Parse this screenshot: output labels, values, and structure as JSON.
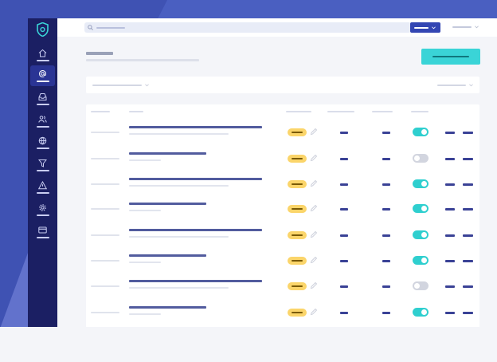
{
  "app": {
    "accent": "#3ad4d7",
    "sidebar_color": "#1b1f63",
    "primary_color": "#3346b3"
  },
  "sidebar": {
    "logo": "shield-at-logo",
    "items": [
      {
        "icon": "home-icon",
        "active": false
      },
      {
        "icon": "at-icon",
        "active": true
      },
      {
        "icon": "inbox-icon",
        "active": false
      },
      {
        "icon": "users-icon",
        "active": false
      },
      {
        "icon": "globe-icon",
        "active": false
      },
      {
        "icon": "filter-icon",
        "active": false
      },
      {
        "icon": "warning-icon",
        "active": false
      },
      {
        "icon": "gear-icon",
        "active": false
      },
      {
        "icon": "card-icon",
        "active": false
      }
    ]
  },
  "table": {
    "rows": [
      {
        "enabled": true,
        "wide": true
      },
      {
        "enabled": false,
        "wide": false
      },
      {
        "enabled": true,
        "wide": true
      },
      {
        "enabled": true,
        "wide": false
      },
      {
        "enabled": true,
        "wide": true
      },
      {
        "enabled": true,
        "wide": false
      },
      {
        "enabled": false,
        "wide": true
      },
      {
        "enabled": true,
        "wide": false
      }
    ]
  }
}
